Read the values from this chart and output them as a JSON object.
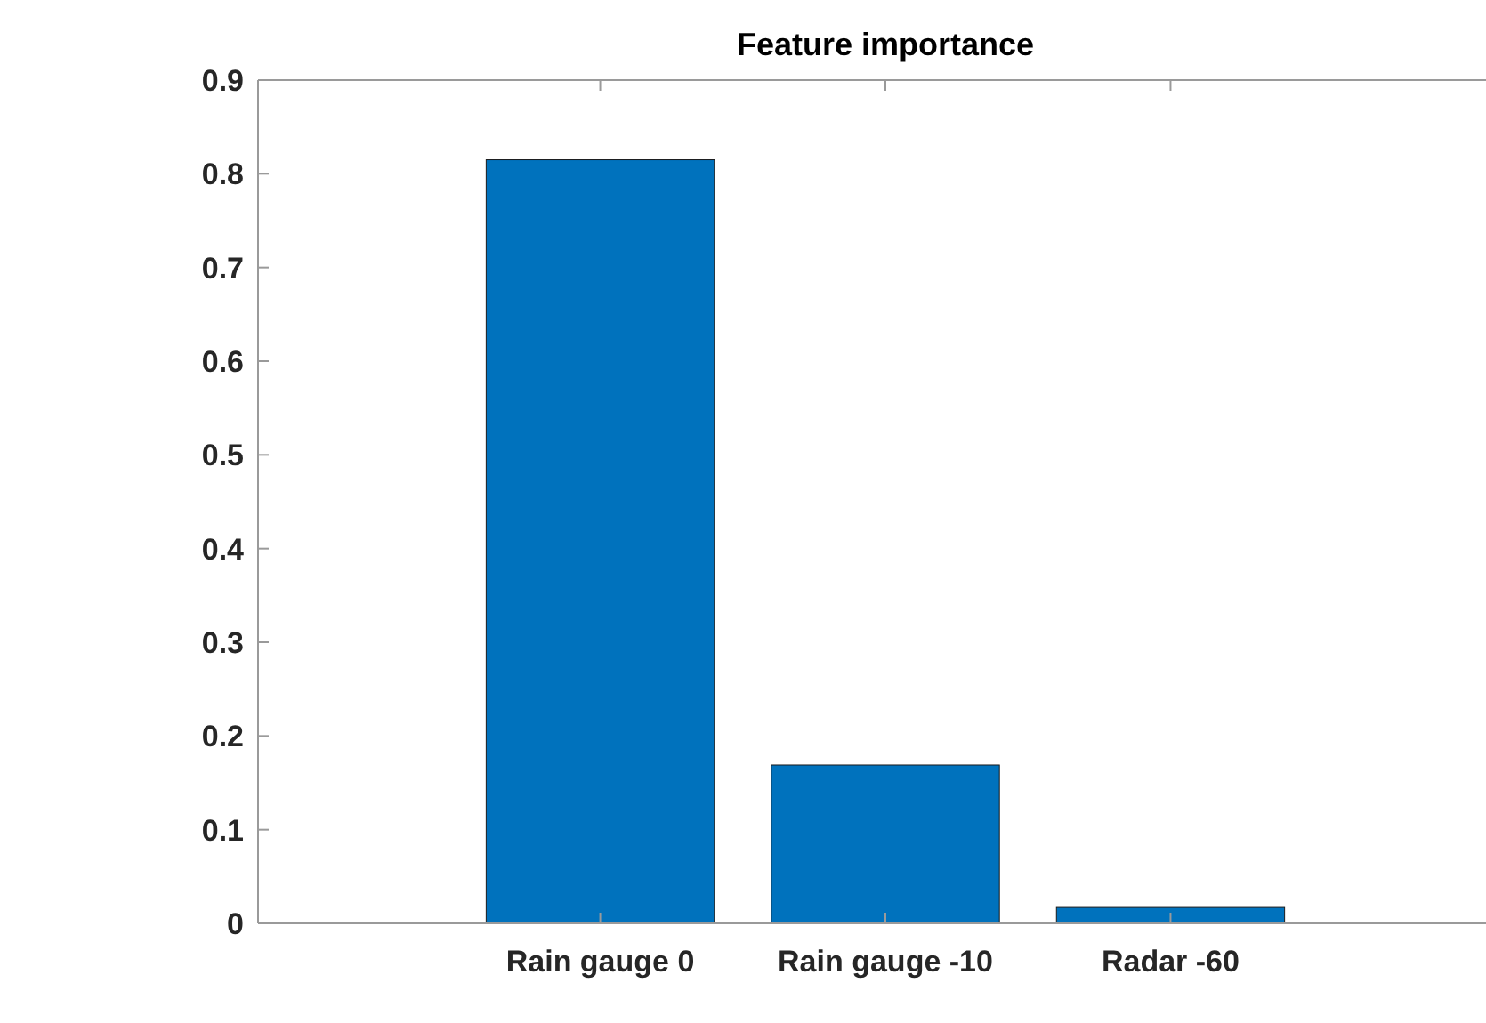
{
  "chart_data": {
    "type": "bar",
    "title": "Feature importance",
    "categories": [
      "Rain gauge 0",
      "Rain gauge -10",
      "Radar -60"
    ],
    "values": [
      0.815,
      0.169,
      0.017
    ],
    "color": "#0072bd",
    "ylim": [
      0,
      0.9
    ],
    "yticks": [
      0,
      0.1,
      0.2,
      0.3,
      0.4,
      0.5,
      0.6,
      0.7,
      0.8,
      0.9
    ],
    "grid": false
  }
}
